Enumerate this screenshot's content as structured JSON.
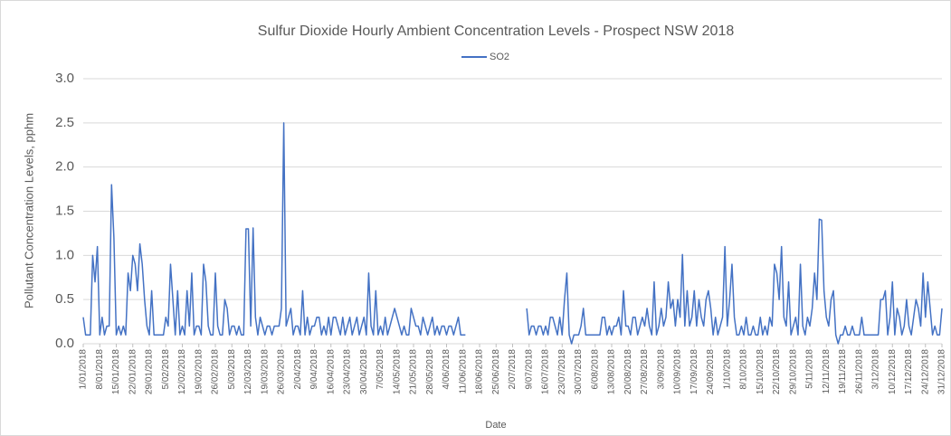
{
  "chart_data": {
    "type": "line",
    "title": "Sulfur Dioxide Hourly Ambient Concentration Levels - Prospect NSW 2018",
    "x_label": "Date",
    "y_label": "Pollutant Concentration Levels, pphm",
    "legend": "top",
    "grid": true,
    "ylim": [
      0,
      3
    ],
    "yticks": [
      {
        "value": 0,
        "label": "0.0"
      },
      {
        "value": 0.5,
        "label": "0.5"
      },
      {
        "value": 1,
        "label": "1.0"
      },
      {
        "value": 1.5,
        "label": "1.5"
      },
      {
        "value": 2,
        "label": "2.0"
      },
      {
        "value": 2.5,
        "label": "2.5"
      },
      {
        "value": 3,
        "label": "3.0"
      }
    ],
    "xlim": [
      0,
      364
    ],
    "xticks": [
      {
        "value": 0,
        "label": "1/01/2018"
      },
      {
        "value": 7,
        "label": "8/01/2018"
      },
      {
        "value": 14,
        "label": "15/01/2018"
      },
      {
        "value": 21,
        "label": "22/01/2018"
      },
      {
        "value": 28,
        "label": "29/01/2018"
      },
      {
        "value": 35,
        "label": "5/02/2018"
      },
      {
        "value": 42,
        "label": "12/02/2018"
      },
      {
        "value": 49,
        "label": "19/02/2018"
      },
      {
        "value": 56,
        "label": "26/02/2018"
      },
      {
        "value": 63,
        "label": "5/03/2018"
      },
      {
        "value": 70,
        "label": "12/03/2018"
      },
      {
        "value": 77,
        "label": "19/03/2018"
      },
      {
        "value": 84,
        "label": "26/03/2018"
      },
      {
        "value": 91,
        "label": "2/04/2018"
      },
      {
        "value": 98,
        "label": "9/04/2018"
      },
      {
        "value": 105,
        "label": "16/04/2018"
      },
      {
        "value": 112,
        "label": "23/04/2018"
      },
      {
        "value": 119,
        "label": "30/04/2018"
      },
      {
        "value": 126,
        "label": "7/05/2018"
      },
      {
        "value": 133,
        "label": "14/05/2018"
      },
      {
        "value": 140,
        "label": "21/05/2018"
      },
      {
        "value": 147,
        "label": "28/05/2018"
      },
      {
        "value": 154,
        "label": "4/06/2018"
      },
      {
        "value": 161,
        "label": "11/06/2018"
      },
      {
        "value": 168,
        "label": "18/06/2018"
      },
      {
        "value": 175,
        "label": "25/06/2018"
      },
      {
        "value": 182,
        "label": "2/07/2018"
      },
      {
        "value": 189,
        "label": "9/07/2018"
      },
      {
        "value": 196,
        "label": "16/07/2018"
      },
      {
        "value": 203,
        "label": "23/07/2018"
      },
      {
        "value": 210,
        "label": "30/07/2018"
      },
      {
        "value": 217,
        "label": "6/08/2018"
      },
      {
        "value": 224,
        "label": "13/08/2018"
      },
      {
        "value": 231,
        "label": "20/08/2018"
      },
      {
        "value": 238,
        "label": "27/08/2018"
      },
      {
        "value": 245,
        "label": "3/09/2018"
      },
      {
        "value": 252,
        "label": "10/09/2018"
      },
      {
        "value": 259,
        "label": "17/09/2018"
      },
      {
        "value": 266,
        "label": "24/09/2018"
      },
      {
        "value": 273,
        "label": "1/10/2018"
      },
      {
        "value": 280,
        "label": "8/10/2018"
      },
      {
        "value": 287,
        "label": "15/10/2018"
      },
      {
        "value": 294,
        "label": "22/10/2018"
      },
      {
        "value": 301,
        "label": "29/10/2018"
      },
      {
        "value": 308,
        "label": "5/11/2018"
      },
      {
        "value": 315,
        "label": "12/11/2018"
      },
      {
        "value": 322,
        "label": "19/11/2018"
      },
      {
        "value": 329,
        "label": "26/11/2018"
      },
      {
        "value": 336,
        "label": "3/12/2018"
      },
      {
        "value": 343,
        "label": "10/12/2018"
      },
      {
        "value": 350,
        "label": "17/12/2018"
      },
      {
        "value": 357,
        "label": "24/12/2018"
      },
      {
        "value": 364,
        "label": "31/12/2018"
      }
    ],
    "series": [
      {
        "name": "SO2",
        "color": "#4472c4",
        "values": [
          0.3,
          0.1,
          0.1,
          0.1,
          1.0,
          0.7,
          1.1,
          0.1,
          0.3,
          0.1,
          0.2,
          0.2,
          1.8,
          1.2,
          0.1,
          0.2,
          0.1,
          0.2,
          0.1,
          0.8,
          0.6,
          1.0,
          0.9,
          0.6,
          1.13,
          0.9,
          0.5,
          0.2,
          0.1,
          0.6,
          0.1,
          0.1,
          0.1,
          0.1,
          0.1,
          0.3,
          0.2,
          0.9,
          0.5,
          0.1,
          0.6,
          0.1,
          0.2,
          0.1,
          0.6,
          0.2,
          0.8,
          0.1,
          0.2,
          0.2,
          0.1,
          0.9,
          0.7,
          0.2,
          0.1,
          0.1,
          0.8,
          0.2,
          0.1,
          0.1,
          0.5,
          0.4,
          0.1,
          0.2,
          0.2,
          0.1,
          0.2,
          0.1,
          0.1,
          1.3,
          1.3,
          0.2,
          1.31,
          0.3,
          0.1,
          0.3,
          0.2,
          0.1,
          0.2,
          0.2,
          0.1,
          0.2,
          0.2,
          0.2,
          0.4,
          2.5,
          0.2,
          0.3,
          0.4,
          0.1,
          0.2,
          0.2,
          0.1,
          0.6,
          0.1,
          0.3,
          0.1,
          0.2,
          0.2,
          0.3,
          0.3,
          0.1,
          0.2,
          0.1,
          0.3,
          0.1,
          0.3,
          0.3,
          0.2,
          0.1,
          0.3,
          0.1,
          0.2,
          0.3,
          0.1,
          0.2,
          0.3,
          0.1,
          0.2,
          0.3,
          0.1,
          0.8,
          0.2,
          0.1,
          0.6,
          0.1,
          0.2,
          0.1,
          0.3,
          0.1,
          0.2,
          0.3,
          0.4,
          0.3,
          0.2,
          0.1,
          0.2,
          0.1,
          0.1,
          0.4,
          0.3,
          0.2,
          0.2,
          0.1,
          0.3,
          0.2,
          0.1,
          0.2,
          0.3,
          0.1,
          0.2,
          0.1,
          0.2,
          0.2,
          0.1,
          0.2,
          0.2,
          0.1,
          0.2,
          0.3,
          0.1,
          0.1,
          0.1,
          null,
          null,
          null,
          null,
          null,
          null,
          null,
          null,
          null,
          null,
          null,
          null,
          null,
          null,
          null,
          null,
          null,
          null,
          null,
          null,
          null,
          null,
          null,
          null,
          null,
          0.4,
          0.1,
          0.2,
          0.2,
          0.1,
          0.2,
          0.2,
          0.1,
          0.2,
          0.1,
          0.3,
          0.3,
          0.2,
          0.1,
          0.3,
          0.1,
          0.5,
          0.8,
          0.1,
          0.0,
          0.1,
          0.1,
          0.1,
          0.2,
          0.4,
          0.1,
          0.1,
          0.1,
          0.1,
          0.1,
          0.1,
          0.1,
          0.3,
          0.3,
          0.1,
          0.2,
          0.1,
          0.2,
          0.2,
          0.3,
          0.1,
          0.6,
          0.2,
          0.2,
          0.1,
          0.3,
          0.3,
          0.1,
          0.2,
          0.3,
          0.2,
          0.4,
          0.2,
          0.1,
          0.7,
          0.1,
          0.2,
          0.4,
          0.2,
          0.3,
          0.7,
          0.4,
          0.5,
          0.2,
          0.5,
          0.3,
          1.01,
          0.2,
          0.6,
          0.2,
          0.3,
          0.6,
          0.2,
          0.5,
          0.3,
          0.2,
          0.5,
          0.6,
          0.4,
          0.1,
          0.3,
          0.1,
          0.2,
          0.3,
          1.1,
          0.2,
          0.5,
          0.9,
          0.3,
          0.1,
          0.1,
          0.2,
          0.1,
          0.3,
          0.1,
          0.1,
          0.2,
          0.1,
          0.1,
          0.3,
          0.1,
          0.2,
          0.1,
          0.3,
          0.2,
          0.9,
          0.8,
          0.5,
          1.1,
          0.3,
          0.2,
          0.7,
          0.1,
          0.2,
          0.3,
          0.1,
          0.9,
          0.2,
          0.1,
          0.3,
          0.2,
          0.4,
          0.8,
          0.5,
          1.41,
          1.4,
          0.6,
          0.3,
          0.2,
          0.5,
          0.6,
          0.1,
          0.0,
          0.1,
          0.1,
          0.2,
          0.1,
          0.1,
          0.2,
          0.1,
          0.1,
          0.1,
          0.3,
          0.1,
          0.1,
          0.1,
          0.1,
          0.1,
          0.1,
          0.1,
          0.5,
          0.5,
          0.6,
          0.1,
          0.3,
          0.7,
          0.1,
          0.4,
          0.3,
          0.1,
          0.2,
          0.5,
          0.2,
          0.1,
          0.3,
          0.5,
          0.4,
          0.2,
          0.8,
          0.3,
          0.7,
          0.4,
          0.1,
          0.2,
          0.1,
          0.1,
          0.4
        ]
      }
    ]
  }
}
